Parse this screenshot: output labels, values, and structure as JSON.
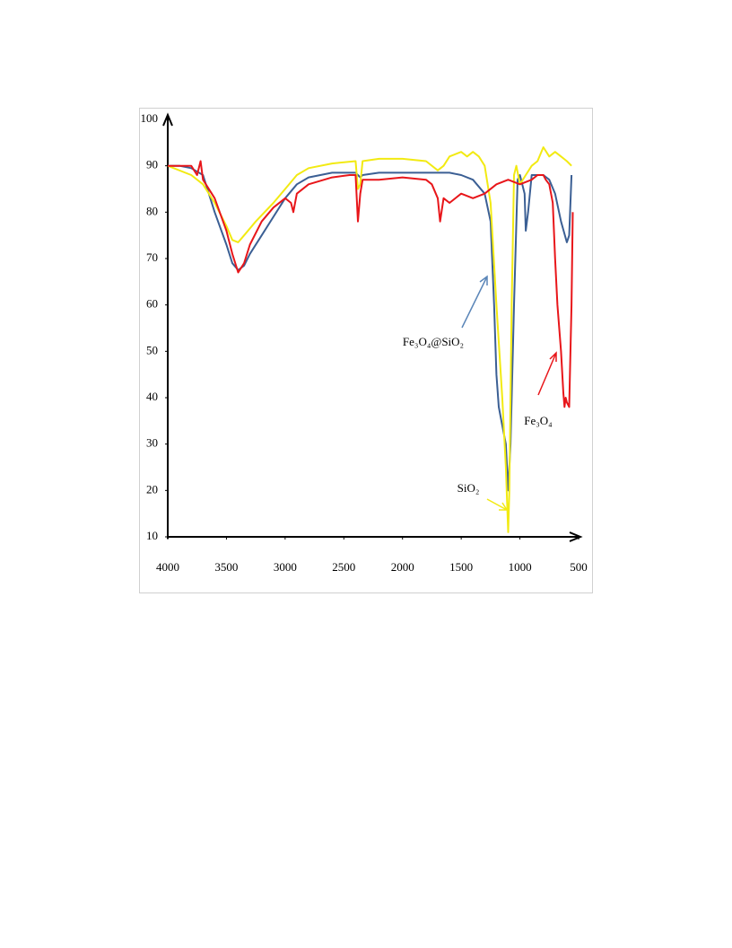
{
  "chart_data": {
    "type": "line",
    "xlim": [
      4000,
      500
    ],
    "ylim": [
      10,
      100
    ],
    "xticks": [
      4000,
      3500,
      3000,
      2500,
      2000,
      1500,
      1000,
      500
    ],
    "yticks": [
      10,
      20,
      30,
      40,
      50,
      60,
      70,
      80,
      90,
      100
    ],
    "series": [
      {
        "name": "Fe₃O₄@SiO₂",
        "color": "#3b5f94",
        "x": [
          4000,
          3900,
          3800,
          3700,
          3650,
          3600,
          3500,
          3450,
          3400,
          3350,
          3300,
          3200,
          3100,
          3000,
          2900,
          2800,
          2600,
          2400,
          2380,
          2360,
          2340,
          2200,
          2000,
          1800,
          1600,
          1500,
          1400,
          1300,
          1250,
          1220,
          1200,
          1180,
          1150,
          1120,
          1100,
          1080,
          1050,
          1020,
          1000,
          960,
          950,
          930,
          900,
          850,
          800,
          750,
          700,
          650,
          600,
          580,
          560
        ],
        "values": [
          90,
          90,
          89.5,
          88,
          84,
          80,
          73,
          69,
          67.5,
          68.5,
          71,
          75,
          79,
          83,
          86,
          87.5,
          88.5,
          88.5,
          88,
          87.5,
          88,
          88.5,
          88.5,
          88.5,
          88.5,
          88,
          87,
          84,
          78,
          60,
          45,
          38,
          34,
          30,
          20,
          30,
          60,
          87,
          88,
          84,
          76,
          80,
          88,
          88,
          88,
          87,
          84,
          78,
          73.5,
          75,
          88
        ]
      },
      {
        "name": "SiO₂",
        "color": "#f2ea12",
        "x": [
          4000,
          3800,
          3700,
          3600,
          3500,
          3450,
          3400,
          3350,
          3250,
          3100,
          3000,
          2900,
          2800,
          2600,
          2400,
          2380,
          2360,
          2340,
          2200,
          2000,
          1800,
          1700,
          1650,
          1600,
          1500,
          1450,
          1400,
          1350,
          1300,
          1250,
          1200,
          1150,
          1120,
          1100,
          1090,
          1070,
          1050,
          1030,
          1000,
          950,
          900,
          850,
          800,
          750,
          700,
          650,
          600,
          560
        ],
        "values": [
          90,
          88,
          86,
          82,
          77,
          74,
          73.5,
          75,
          78,
          82,
          85,
          88,
          89.5,
          90.5,
          91,
          85,
          86,
          91,
          91.5,
          91.5,
          91,
          89,
          90,
          92,
          93,
          92,
          93,
          92,
          90,
          82,
          60,
          40,
          25,
          11,
          20,
          60,
          88,
          90,
          86,
          88,
          90,
          91,
          94,
          92,
          93,
          92,
          91,
          90
        ]
      },
      {
        "name": "Fe₃O₄",
        "color": "#e8161a",
        "x": [
          4000,
          3900,
          3800,
          3750,
          3720,
          3700,
          3600,
          3500,
          3450,
          3400,
          3350,
          3300,
          3200,
          3100,
          3000,
          2950,
          2930,
          2900,
          2800,
          2600,
          2450,
          2400,
          2380,
          2360,
          2340,
          2200,
          2000,
          1800,
          1750,
          1700,
          1680,
          1650,
          1600,
          1500,
          1400,
          1300,
          1200,
          1100,
          1000,
          900,
          850,
          800,
          780,
          750,
          720,
          700,
          680,
          650,
          630,
          620,
          610,
          600,
          580,
          560,
          550
        ],
        "values": [
          90,
          90,
          90,
          88,
          91,
          87,
          83,
          76,
          71,
          67,
          69,
          73,
          78,
          81,
          83,
          82,
          80,
          84,
          86,
          87.5,
          88,
          88,
          78,
          84,
          87,
          87,
          87.5,
          87,
          86,
          83,
          78,
          83,
          82,
          84,
          83,
          84,
          86,
          87,
          86,
          87,
          88,
          88,
          87,
          86,
          82,
          70,
          60,
          50,
          41,
          38,
          40,
          39,
          38,
          60,
          80
        ]
      }
    ]
  }
}
